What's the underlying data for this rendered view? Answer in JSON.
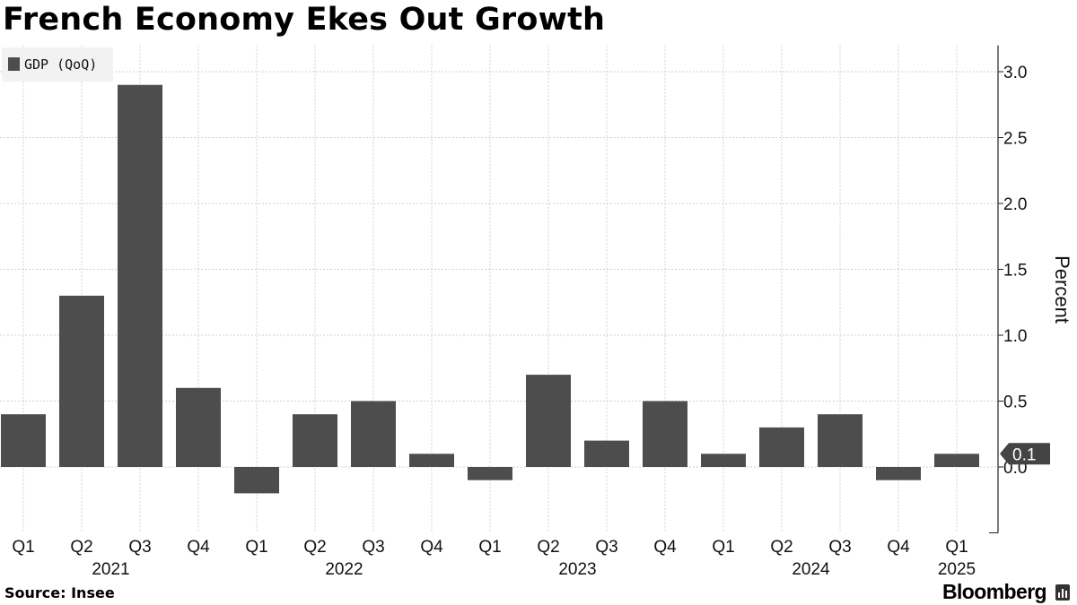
{
  "header": {
    "title": "French Economy Ekes Out Growth"
  },
  "footer": {
    "source": "Source: Insee",
    "brand": "Bloomberg"
  },
  "icons": {
    "brand_icon": "bloomberg-terminal-icon"
  },
  "colors": {
    "bar": "#4d4d4d",
    "grid": "#cfcfcf",
    "axis": "#222222",
    "legend_bg": "#f2f2f2"
  },
  "chart_data": {
    "type": "bar",
    "title": "French Economy Ekes Out Growth",
    "legend": {
      "placement": "top-left",
      "entries": [
        "GDP (QoQ)"
      ]
    },
    "ylabel": "Percent",
    "ylim": [
      -0.5,
      3.2
    ],
    "yticks": [
      0.0,
      0.5,
      1.0,
      1.5,
      2.0,
      2.5,
      3.0
    ],
    "ytick_labels": [
      "0.0",
      "0.5",
      "1.0",
      "1.5",
      "2.0",
      "2.5",
      "3.0"
    ],
    "grid": true,
    "categories": [
      "Q1",
      "Q2",
      "Q3",
      "Q4",
      "Q1",
      "Q2",
      "Q3",
      "Q4",
      "Q1",
      "Q2",
      "Q3",
      "Q4",
      "Q1",
      "Q2",
      "Q3",
      "Q4",
      "Q1"
    ],
    "years": [
      {
        "label": "2021",
        "start": 0,
        "end": 3
      },
      {
        "label": "2022",
        "start": 4,
        "end": 7
      },
      {
        "label": "2023",
        "start": 8,
        "end": 11
      },
      {
        "label": "2024",
        "start": 12,
        "end": 15
      },
      {
        "label": "2025",
        "start": 16,
        "end": 16
      }
    ],
    "series": [
      {
        "name": "GDP (QoQ)",
        "values": [
          0.4,
          1.3,
          2.9,
          0.6,
          -0.2,
          0.4,
          0.5,
          0.1,
          -0.1,
          0.7,
          0.2,
          0.5,
          0.1,
          0.3,
          0.4,
          -0.1,
          0.1
        ]
      }
    ],
    "last_value_callout": "0.1"
  }
}
